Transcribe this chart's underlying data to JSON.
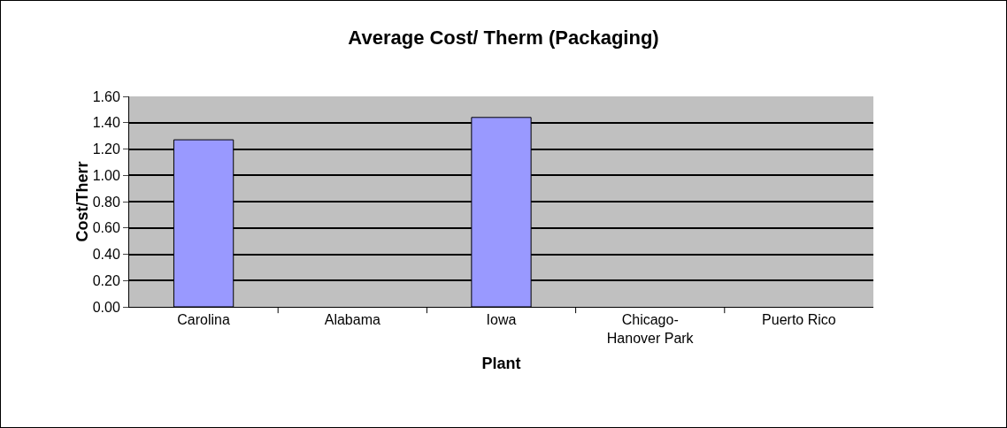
{
  "chart_data": {
    "type": "bar",
    "title": "Average Cost/ Therm (Packaging)",
    "xlabel": "Plant",
    "ylabel": "Cost/Therr",
    "categories": [
      "Carolina",
      "Alabama",
      "Iowa",
      "Chicago-\nHanover Park",
      "Puerto Rico"
    ],
    "values": [
      1.27,
      null,
      1.44,
      null,
      null
    ],
    "color": "#9999ff",
    "ylim": [
      0,
      1.6
    ],
    "yticks": [
      {
        "value": 0,
        "label": "0.00"
      },
      {
        "value": 0.2,
        "label": "0.20"
      },
      {
        "value": 0.4,
        "label": "0.40"
      },
      {
        "value": 0.6,
        "label": "0.60"
      },
      {
        "value": 0.8,
        "label": "0.80"
      },
      {
        "value": 1,
        "label": "1.00"
      },
      {
        "value": 1.2,
        "label": "1.20"
      },
      {
        "value": 1.4,
        "label": "1.40"
      },
      {
        "value": 1.6,
        "label": "1.60"
      }
    ],
    "grid": "y"
  }
}
